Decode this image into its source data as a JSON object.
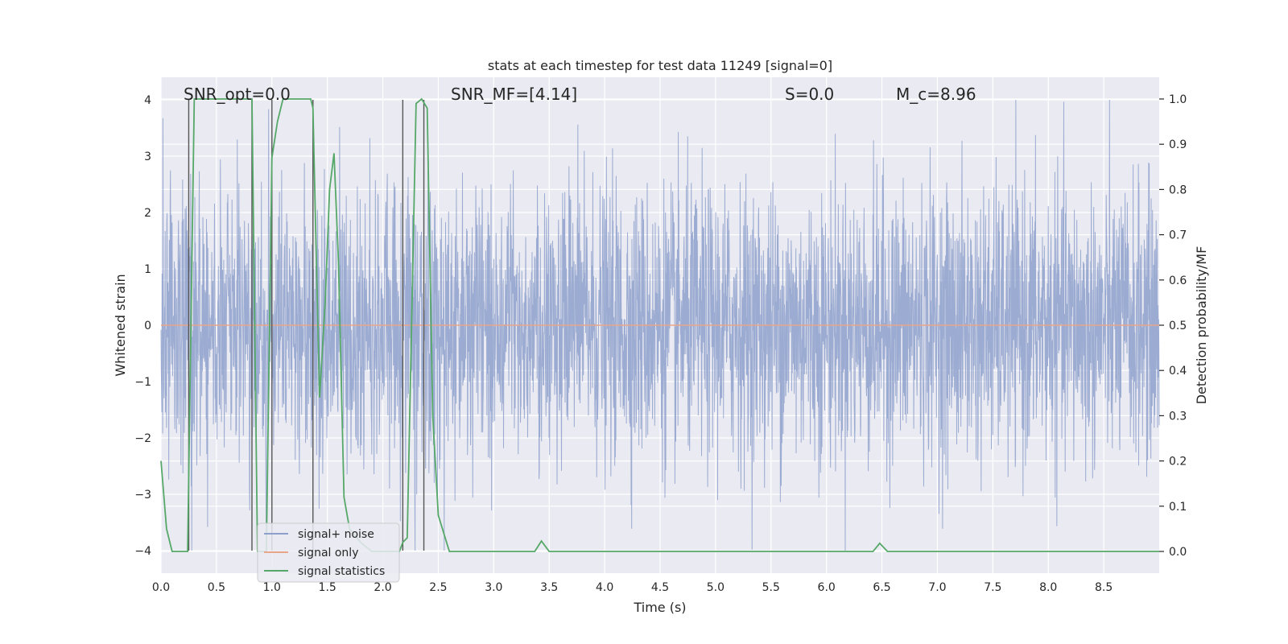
{
  "chart_data": {
    "type": "line",
    "title": "stats at each timestep for test data 11249 [signal=0]",
    "xlabel": "Time (s)",
    "ylabel": "Whitened strain",
    "y2label": "Detection probability/MF",
    "xlim": [
      0.0,
      9.0
    ],
    "ylim": [
      -4.4,
      4.4
    ],
    "y2lim": [
      -0.048,
      1.048
    ],
    "xticks": [
      0.0,
      0.5,
      1.0,
      1.5,
      2.0,
      2.5,
      3.0,
      3.5,
      4.0,
      4.5,
      5.0,
      5.5,
      6.0,
      6.5,
      7.0,
      7.5,
      8.0,
      8.5
    ],
    "xtick_labels": [
      "0.0",
      "0.5",
      "1.0",
      "1.5",
      "2.0",
      "2.5",
      "3.0",
      "3.5",
      "4.0",
      "4.5",
      "5.0",
      "5.5",
      "6.0",
      "6.5",
      "7.0",
      "7.5",
      "8.0",
      "8.5"
    ],
    "yticks": [
      -4,
      -3,
      -2,
      -1,
      0,
      1,
      2,
      3,
      4
    ],
    "ytick_labels": [
      "−4",
      "−3",
      "−2",
      "−1",
      "0",
      "1",
      "2",
      "3",
      "4"
    ],
    "y2ticks": [
      0.0,
      0.1,
      0.2,
      0.3,
      0.4,
      0.5,
      0.6,
      0.7,
      0.8,
      0.9,
      1.0
    ],
    "y2tick_labels": [
      "0.0",
      "0.1",
      "0.2",
      "0.3",
      "0.4",
      "0.5",
      "0.6",
      "0.7",
      "0.8",
      "0.9",
      "1.0"
    ],
    "grid": true,
    "legend_position": "lower-left",
    "annotations": [
      {
        "label": "SNR_opt=0.0",
        "x": 0.2,
        "y": 4.0
      },
      {
        "label": "SNR_MF=[4.14]",
        "x": 2.6,
        "y": 4.0
      },
      {
        "label": "S=0.0",
        "x": 5.6,
        "y": 4.0
      },
      {
        "label": "M_c=8.96",
        "x": 6.6,
        "y": 4.0
      }
    ],
    "vertical_lines_x": [
      0.25,
      0.82,
      1.0,
      1.37,
      2.18,
      2.37
    ],
    "series": [
      {
        "name": "signal+ noise",
        "color": "#8da0cb",
        "style": "dense noise trace, amplitude ~2 std, peaks to ±4",
        "x_range": [
          0.0,
          9.0
        ]
      },
      {
        "name": "signal only",
        "color": "#e8a58a",
        "x": [
          0.0,
          9.0
        ],
        "y": [
          0.0,
          0.0
        ]
      },
      {
        "name": "signal statistics",
        "color": "#55a868",
        "axis": "right",
        "x": [
          0.0,
          0.05,
          0.1,
          0.2,
          0.24,
          0.3,
          0.35,
          0.5,
          0.6,
          0.7,
          0.8,
          0.82,
          0.87,
          0.95,
          1.0,
          1.05,
          1.1,
          1.2,
          1.3,
          1.35,
          1.37,
          1.4,
          1.43,
          1.48,
          1.52,
          1.56,
          1.6,
          1.65,
          1.7,
          1.8,
          1.9,
          2.0,
          2.1,
          2.15,
          2.18,
          2.22,
          2.3,
          2.35,
          2.4,
          2.45,
          2.5,
          2.6,
          2.8,
          3.0,
          3.2,
          3.3,
          3.37,
          3.43,
          3.5,
          3.6,
          4.0,
          5.0,
          6.0,
          6.35,
          6.42,
          6.48,
          6.55,
          7.0,
          8.0,
          9.0
        ],
        "y": [
          0.2,
          0.05,
          0.0,
          0.0,
          0.0,
          1.0,
          1.0,
          1.0,
          1.0,
          1.0,
          1.0,
          1.0,
          0.0,
          0.0,
          0.87,
          0.95,
          1.0,
          1.0,
          1.0,
          1.0,
          0.98,
          0.65,
          0.34,
          0.55,
          0.8,
          0.88,
          0.64,
          0.12,
          0.05,
          0.02,
          0.0,
          0.0,
          0.0,
          0.0,
          0.02,
          0.03,
          0.99,
          1.0,
          0.98,
          0.3,
          0.08,
          0.0,
          0.0,
          0.0,
          0.0,
          0.0,
          0.0,
          0.023,
          0.0,
          0.0,
          0.0,
          0.0,
          0.0,
          0.0,
          0.0,
          0.018,
          0.0,
          0.0,
          0.0,
          0.0
        ]
      }
    ]
  }
}
